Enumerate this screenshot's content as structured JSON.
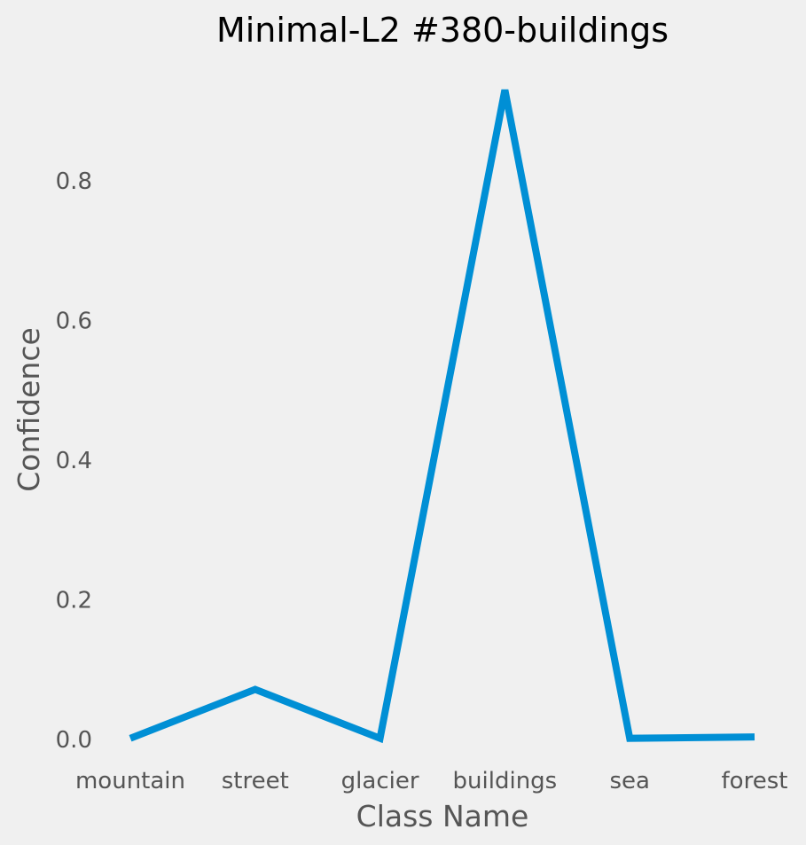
{
  "chart_data": {
    "type": "line",
    "title": "Minimal-L2 #380-buildings",
    "xlabel": "Class Name",
    "ylabel": "Confidence",
    "categories": [
      "mountain",
      "street",
      "glacier",
      "buildings",
      "sea",
      "forest"
    ],
    "series": [
      {
        "values": [
          0.002,
          0.072,
          0.002,
          0.93,
          0.002,
          0.004
        ],
        "color": "#008fd5"
      }
    ],
    "yticks": [
      "0.0",
      "0.2",
      "0.4",
      "0.6",
      "0.8"
    ],
    "ylim": [
      -0.02,
      0.97
    ],
    "grid": false,
    "legend": "none"
  }
}
